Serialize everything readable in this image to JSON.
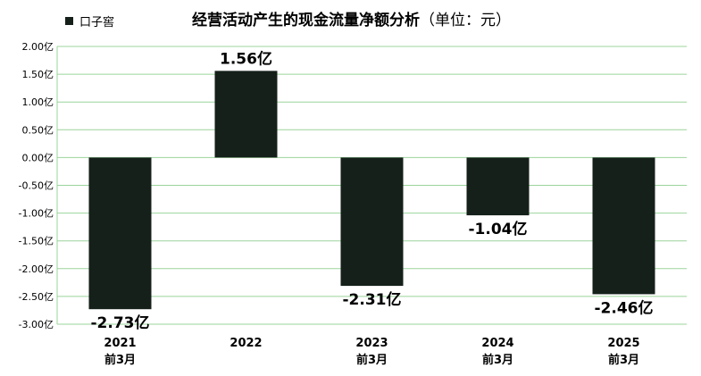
{
  "chart_data": {
    "type": "bar",
    "title": "经营活动产生的现金流量净额分析",
    "unit": "（单位：元）",
    "legend": "口子窖",
    "color": "#15201a",
    "categories": [
      {
        "year": "2021",
        "period": "前3月"
      },
      {
        "year": "2022",
        "period": ""
      },
      {
        "year": "2023",
        "period": "前3月"
      },
      {
        "year": "2024",
        "period": "前3月"
      },
      {
        "year": "2025",
        "period": "前3月"
      }
    ],
    "values": [
      -2.73,
      1.56,
      -2.31,
      -1.04,
      -2.46
    ],
    "data_labels": [
      "-2.73亿",
      "1.56亿",
      "-2.31亿",
      "-1.04亿",
      "-2.46亿"
    ],
    "yticks": [
      "2.00亿",
      "1.50亿",
      "1.00亿",
      "0.50亿",
      "0.00亿",
      "-0.50亿",
      "-1.00亿",
      "-1.50亿",
      "-2.00亿",
      "-2.50亿",
      "-3.00亿"
    ],
    "ylim": [
      -3.0,
      2.0
    ],
    "grid": true,
    "legend_position": "top-left"
  }
}
